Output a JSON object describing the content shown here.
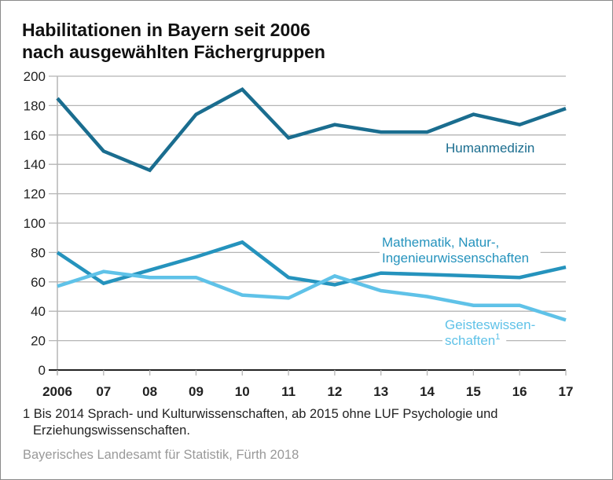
{
  "title_line1": "Habilitationen in Bayern seit 2006",
  "title_line2": "nach ausgewählten Fächergruppen",
  "footnote_line1": "1 Bis 2014 Sprach- und Kulturwissenschaften, ab 2015 ohne LUF Psychologie und",
  "footnote_line2": "Erziehungswissenschaften.",
  "source": "Bayerisches Landesamt für Statistik, Fürth 2018",
  "chart_data": {
    "type": "line",
    "title": "Habilitationen in Bayern seit 2006 nach ausgewählten Fächergruppen",
    "xlabel": "",
    "ylabel": "",
    "categories": [
      "2006",
      "07",
      "08",
      "09",
      "10",
      "11",
      "12",
      "13",
      "14",
      "15",
      "16",
      "17"
    ],
    "ylim": [
      0,
      200
    ],
    "yticks": [
      0,
      20,
      40,
      60,
      80,
      100,
      120,
      140,
      160,
      180,
      200
    ],
    "grid": true,
    "series": [
      {
        "name": "Humanmedizin",
        "label_lines": [
          "Humanmedizin"
        ],
        "color": "#1a6d8f",
        "values": [
          185,
          149,
          136,
          174,
          191,
          158,
          167,
          162,
          162,
          174,
          167,
          178
        ]
      },
      {
        "name": "Mathematik, Natur-, Ingenieurwissenschaften",
        "label_lines": [
          "Mathematik, Natur-,",
          "Ingenieurwissenschaften"
        ],
        "color": "#2593bd",
        "values": [
          80,
          59,
          68,
          77,
          87,
          63,
          58,
          66,
          65,
          64,
          63,
          70
        ]
      },
      {
        "name": "Geisteswissenschaften¹",
        "label_lines": [
          "Geisteswissen-",
          "schaften"
        ],
        "label_sup": "1",
        "color": "#5fc2e8",
        "values": [
          57,
          67,
          63,
          63,
          51,
          49,
          64,
          54,
          50,
          44,
          44,
          34
        ]
      }
    ]
  }
}
